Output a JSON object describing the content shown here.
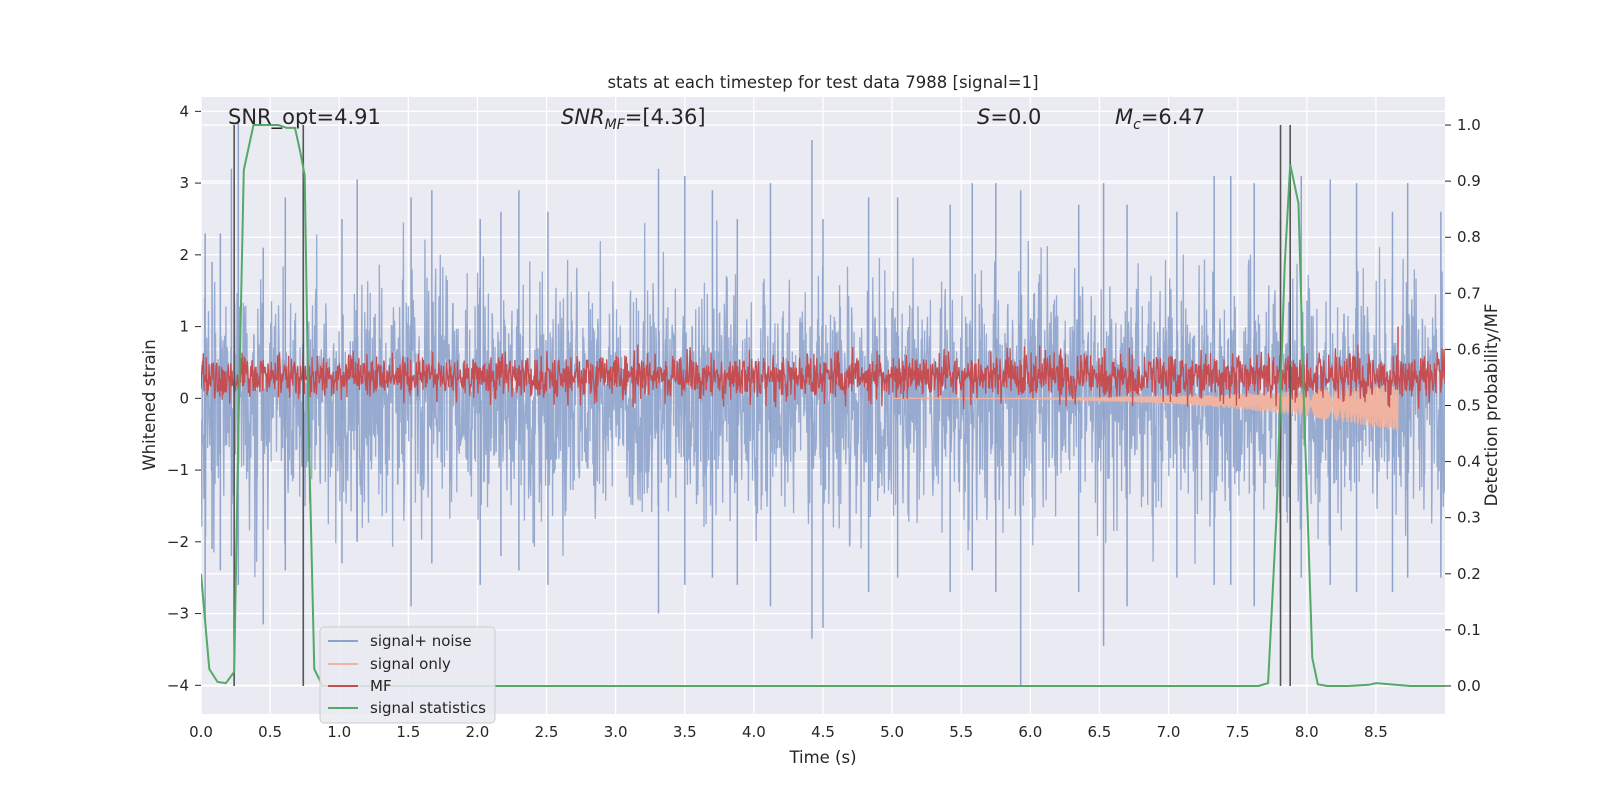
{
  "chart_data": {
    "type": "line",
    "title": "stats at each timestep for test data 7988 [signal=1]",
    "xlabel": "Time (s)",
    "ylabel": "Whitened strain",
    "y2label": "Detection probability/MF",
    "xlim": [
      0,
      9
    ],
    "ylim": [
      -4.4,
      4.2
    ],
    "y2lim": [
      -0.05,
      1.05
    ],
    "xticks": [
      "0.0",
      "0.5",
      "1.0",
      "1.5",
      "2.0",
      "2.5",
      "3.0",
      "3.5",
      "4.0",
      "4.5",
      "5.0",
      "5.5",
      "6.0",
      "6.5",
      "7.0",
      "7.5",
      "8.0",
      "8.5"
    ],
    "yticks": [
      "−4",
      "−3",
      "−2",
      "−1",
      "0",
      "1",
      "2",
      "3",
      "4"
    ],
    "y2ticks": [
      "0.0",
      "0.1",
      "0.2",
      "0.3",
      "0.4",
      "0.5",
      "0.6",
      "0.7",
      "0.8",
      "0.9",
      "1.0"
    ],
    "annotations": {
      "snr_opt": "SNR_opt=4.91",
      "snr_mf_prefix": "SNR",
      "snr_mf_sub": "MF",
      "snr_mf_value": "=[4.36]",
      "s_prefix": "S",
      "s_value": "=0.0",
      "mc_prefix": "M",
      "mc_sub": "c",
      "mc_value": "=6.47"
    },
    "legend": {
      "location": "lower-left",
      "entries": [
        {
          "label": "signal+ noise",
          "color": "#8ea3cb"
        },
        {
          "label": "signal only",
          "color": "#f0b3a0"
        },
        {
          "label": "MF",
          "color": "#c44e52"
        },
        {
          "label": "signal statistics",
          "color": "#55a868"
        }
      ]
    },
    "series": [
      {
        "name": "signal statistics",
        "axis": "right",
        "color": "#55a868",
        "x": [
          0.0,
          0.06,
          0.12,
          0.18,
          0.24,
          0.27,
          0.31,
          0.38,
          0.44,
          0.5,
          0.56,
          0.62,
          0.68,
          0.72,
          0.75,
          0.78,
          0.82,
          0.88,
          1.0,
          7.3,
          7.65,
          7.72,
          7.78,
          7.84,
          7.88,
          7.94,
          7.98,
          8.04,
          8.08,
          8.15,
          8.3,
          8.45,
          8.5,
          8.6,
          8.75,
          9.0
        ],
        "y": [
          0.2,
          0.03,
          0.007,
          0.005,
          0.025,
          0.45,
          0.92,
          1.0,
          1.0,
          1.0,
          1.0,
          0.995,
          0.995,
          0.95,
          0.91,
          0.45,
          0.03,
          0.0,
          0.0,
          0.0,
          0.0,
          0.005,
          0.3,
          0.75,
          0.93,
          0.86,
          0.5,
          0.05,
          0.003,
          0.0,
          0.0,
          0.002,
          0.005,
          0.003,
          0.0,
          0.0
        ]
      },
      {
        "name": "signal+ noise",
        "axis": "left",
        "color": "#8ea3cb",
        "spikes": {
          "x": [
            0.03,
            0.08,
            0.14,
            0.22,
            0.27,
            0.45,
            0.61,
            0.74,
            1.02,
            1.13,
            1.52,
            1.67,
            2.02,
            2.17,
            2.3,
            2.51,
            3.31,
            3.5,
            3.7,
            3.88,
            4.12,
            4.42,
            4.5,
            4.83,
            5.04,
            5.42,
            5.58,
            5.75,
            5.93,
            6.35,
            6.53,
            6.7,
            7.06,
            7.33,
            7.45,
            7.62,
            7.81,
            7.96,
            8.17,
            8.36,
            8.62,
            8.73,
            8.97
          ],
          "hi": [
            2.3,
            1.9,
            2.3,
            3.2,
            3.85,
            2.1,
            2.8,
            2.9,
            2.5,
            3.05,
            2.8,
            2.9,
            2.5,
            2.6,
            2.9,
            2.6,
            3.2,
            3.1,
            2.9,
            2.5,
            3.0,
            3.6,
            2.5,
            2.8,
            2.8,
            2.7,
            3.0,
            3.0,
            2.9,
            2.7,
            3.0,
            2.7,
            2.6,
            3.1,
            3.1,
            3.0,
            2.5,
            3.1,
            3.05,
            3.0,
            2.6,
            3.0,
            2.6
          ],
          "lo": [
            -3.1,
            -2.1,
            -2.4,
            -2.2,
            -2.6,
            -3.15,
            -2.4,
            -2.1,
            -2.3,
            -2.0,
            -2.9,
            -2.3,
            -2.6,
            -2.2,
            -2.4,
            -2.6,
            -3.0,
            -2.6,
            -2.5,
            -2.6,
            -2.9,
            -3.35,
            -3.2,
            -2.7,
            -2.5,
            -2.7,
            -2.4,
            -2.7,
            -4.0,
            -2.7,
            -3.45,
            -2.9,
            -2.5,
            -2.6,
            -2.6,
            -2.9,
            -2.8,
            -2.5,
            -2.6,
            -2.7,
            -2.7,
            -2.5,
            -2.5
          ]
        }
      },
      {
        "name": "MF",
        "axis": "left",
        "color": "#c44e52",
        "center": 0.3,
        "x_range": [
          0.0,
          9.0
        ],
        "spikes": {
          "x": [
            8.66
          ],
          "hi": [
            1.0
          ]
        }
      },
      {
        "name": "signal only",
        "axis": "left",
        "color": "#f0b3a0",
        "x_range": [
          5.0,
          8.66
        ],
        "amplitude_end": 0.33
      }
    ],
    "vertical_lines_x": [
      0.24,
      0.74,
      7.81,
      7.88
    ],
    "vertical_lines_range_y2": [
      0.0,
      1.0
    ]
  }
}
